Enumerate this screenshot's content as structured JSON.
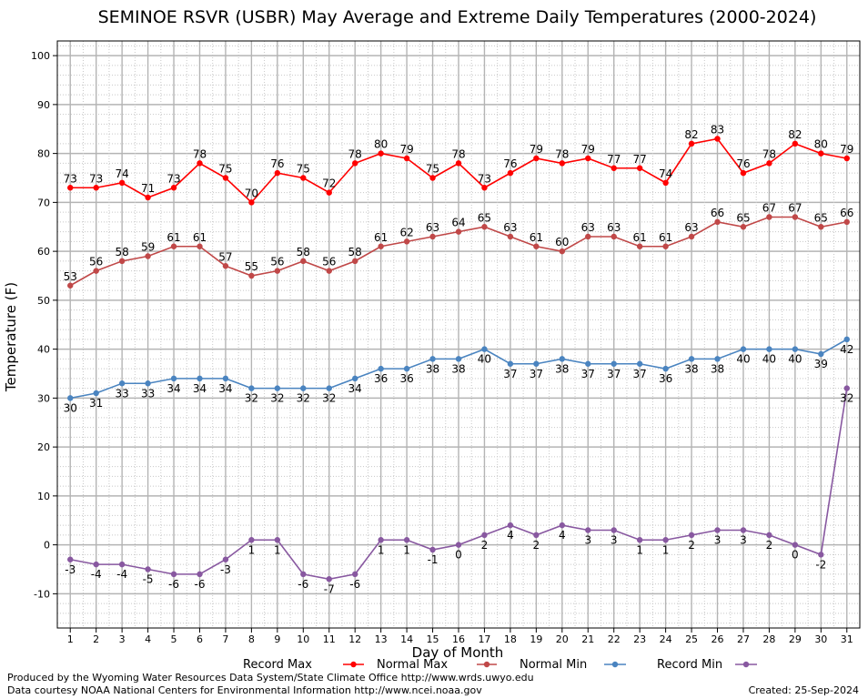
{
  "chart_data": {
    "type": "line",
    "title": "SEMINOE RSVR (USBR) May Average and Extreme Daily Temperatures (2000-2024)",
    "xlabel": "Day of Month",
    "ylabel": "Temperature (F)",
    "ylim": [
      -17,
      103
    ],
    "yticks": [
      -10,
      0,
      10,
      20,
      30,
      40,
      50,
      60,
      70,
      80,
      90,
      100
    ],
    "grid": true,
    "legend_position": "bottom",
    "x": [
      1,
      2,
      3,
      4,
      5,
      6,
      7,
      8,
      9,
      10,
      11,
      12,
      13,
      14,
      15,
      16,
      17,
      18,
      19,
      20,
      21,
      22,
      23,
      24,
      25,
      26,
      27,
      28,
      29,
      30,
      31
    ],
    "series": [
      {
        "name": "Record Max",
        "color": "#ff0000",
        "label_pos": "above",
        "values": [
          73,
          73,
          74,
          71,
          73,
          78,
          75,
          70,
          76,
          75,
          72,
          78,
          80,
          79,
          75,
          78,
          73,
          76,
          79,
          78,
          79,
          77,
          77,
          74,
          82,
          83,
          76,
          78,
          82,
          80,
          79
        ]
      },
      {
        "name": "Normal Max",
        "color": "#c04848",
        "label_pos": "above",
        "values": [
          53,
          56,
          58,
          59,
          61,
          61,
          57,
          55,
          56,
          58,
          56,
          58,
          61,
          62,
          63,
          64,
          65,
          63,
          61,
          60,
          63,
          63,
          61,
          61,
          63,
          66,
          65,
          67,
          67,
          65,
          66
        ]
      },
      {
        "name": "Normal Min",
        "color": "#4a84c0",
        "label_pos": "below",
        "values": [
          30,
          31,
          33,
          33,
          34,
          34,
          34,
          32,
          32,
          32,
          32,
          34,
          36,
          36,
          38,
          38,
          40,
          37,
          37,
          38,
          37,
          37,
          37,
          36,
          38,
          38,
          40,
          40,
          40,
          39,
          42
        ]
      },
      {
        "name": "Record Min",
        "color": "#8858a0",
        "label_pos": "below",
        "values": [
          -3,
          -4,
          -4,
          -5,
          -6,
          -6,
          -3,
          1,
          1,
          -6,
          -7,
          -6,
          1,
          1,
          -1,
          0,
          2,
          4,
          2,
          4,
          3,
          3,
          1,
          1,
          2,
          3,
          3,
          2,
          0,
          -2,
          32
        ]
      }
    ]
  },
  "footer": {
    "produced_by": "Produced by the Wyoming Water Resources Data System/State Climate Office http://www.wrds.uwyo.edu",
    "data_courtesy": "Data courtesy NOAA National Centers for Environmental Information http://www.ncei.noaa.gov",
    "created": "Created:  25-Sep-2024"
  }
}
